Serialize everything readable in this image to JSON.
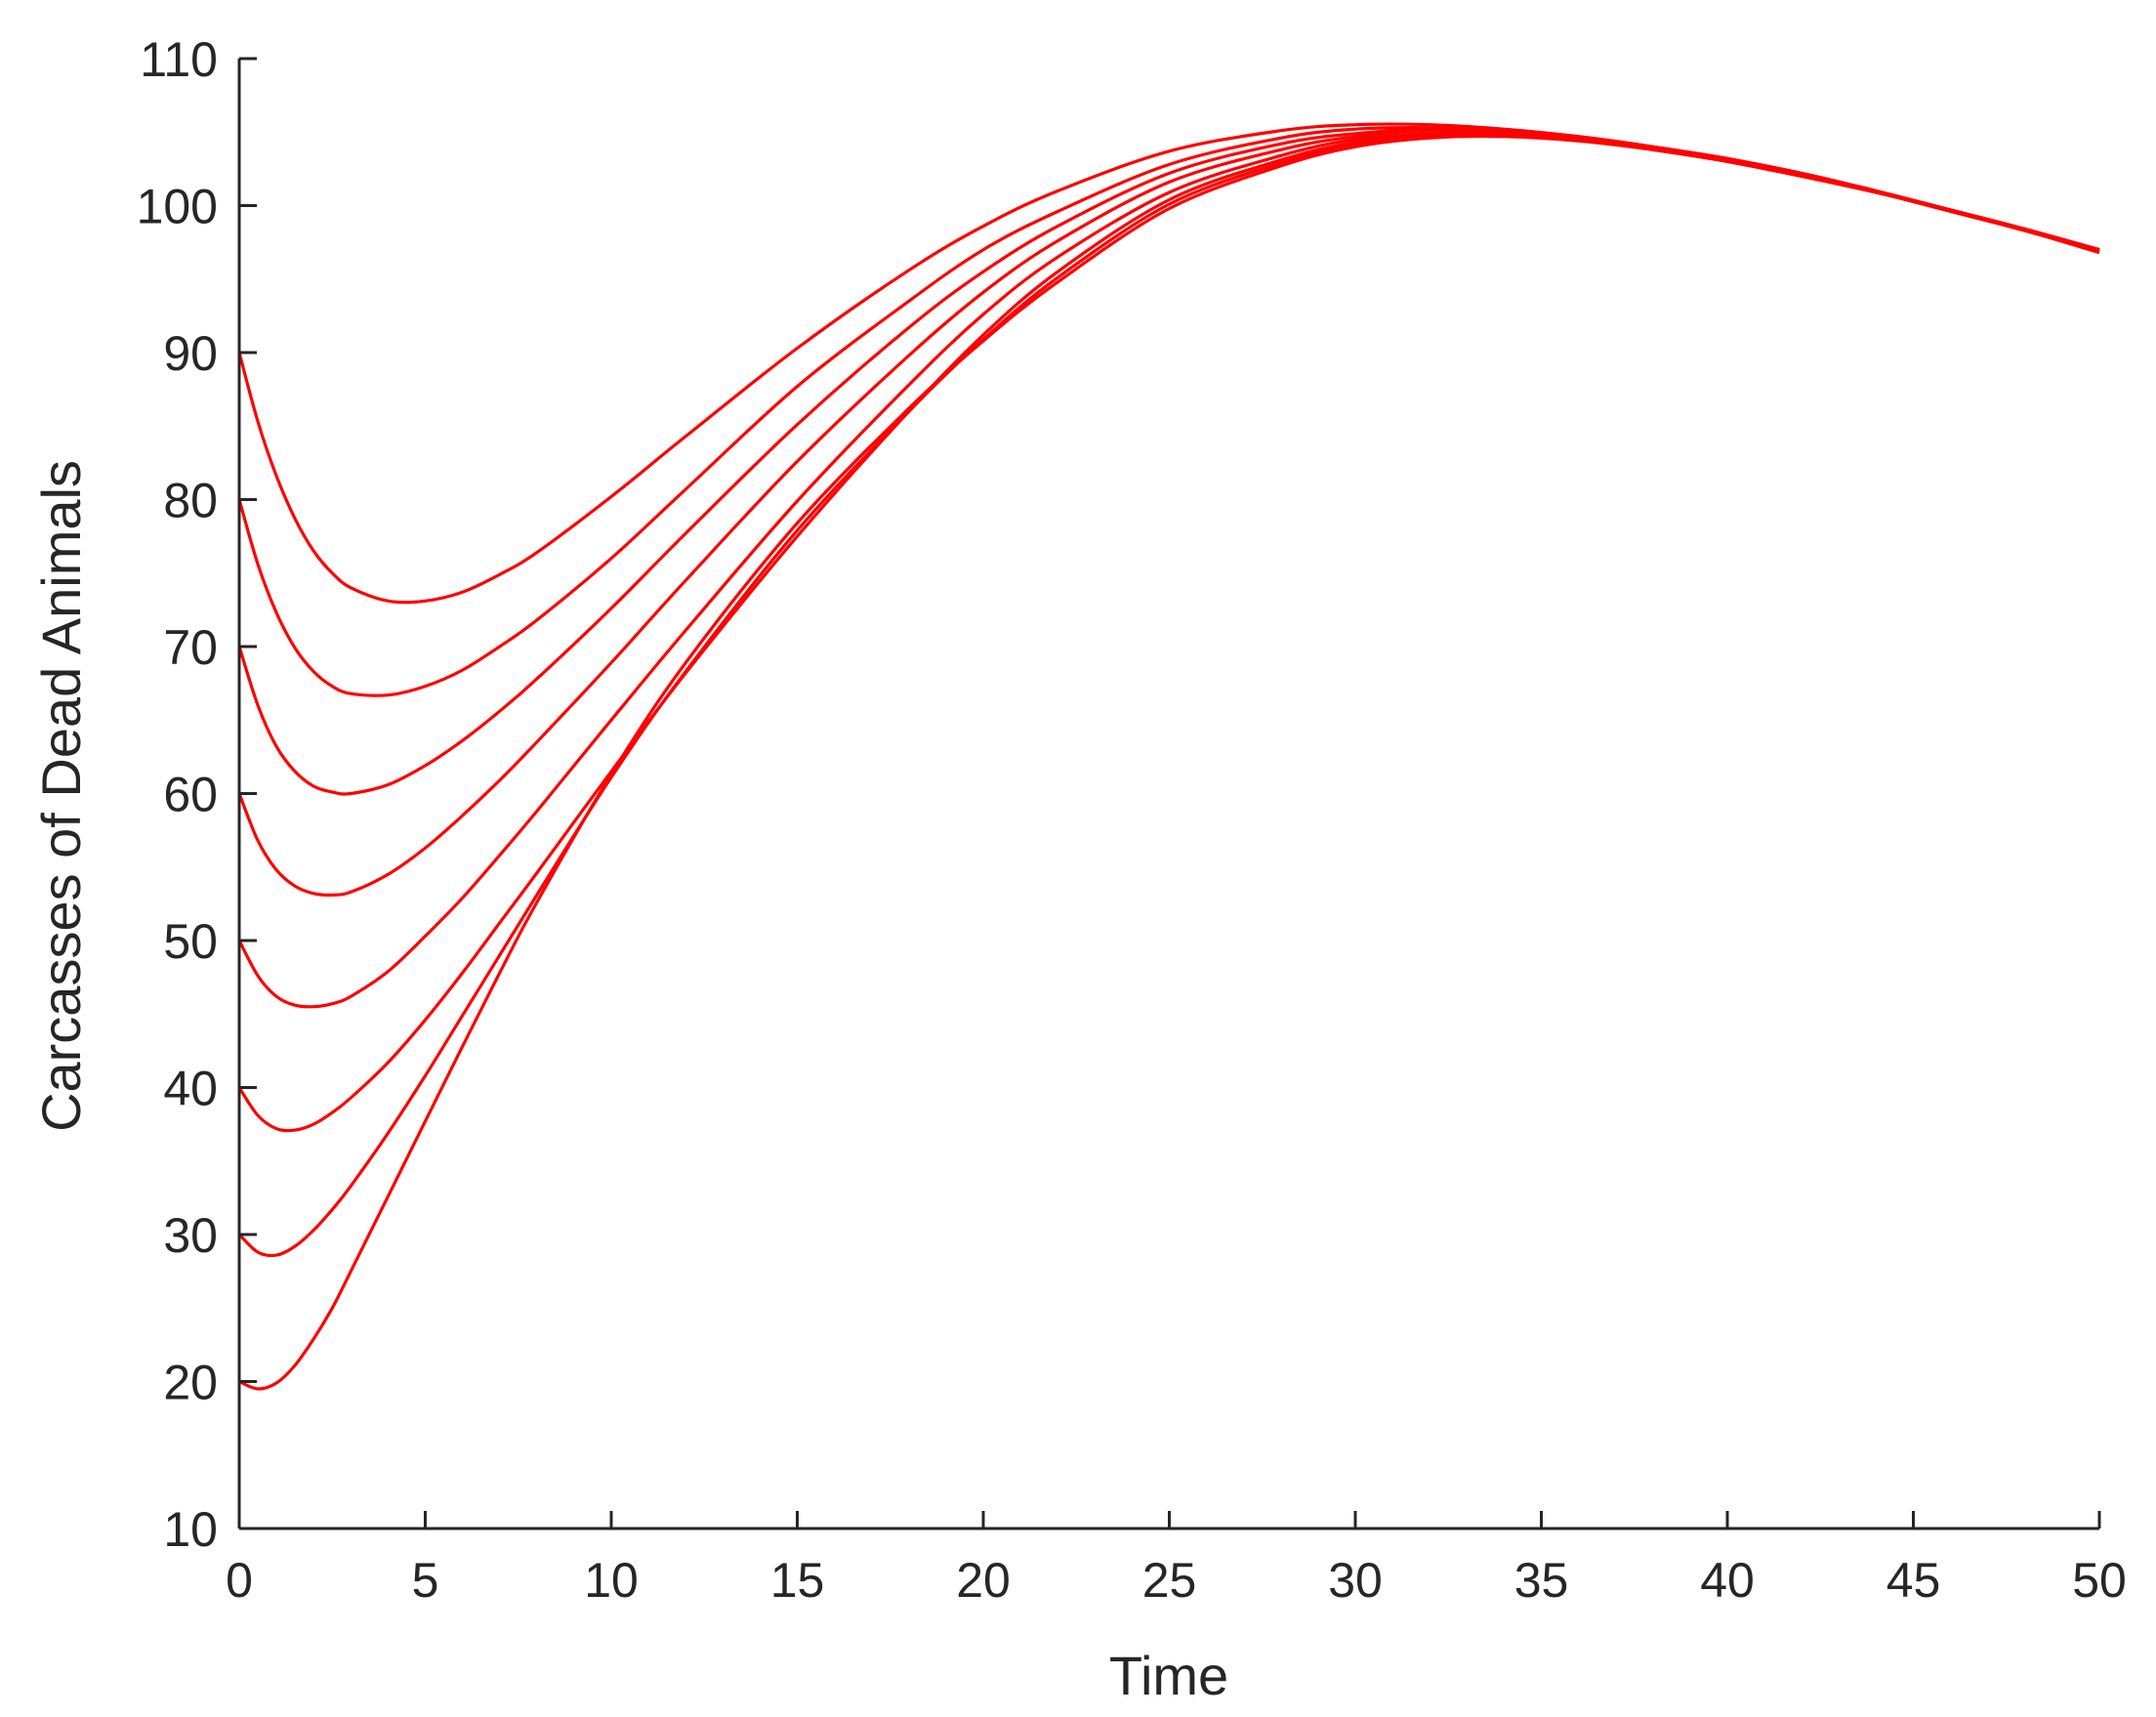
{
  "chart_data": {
    "type": "line",
    "title": "",
    "xlabel": "Time",
    "ylabel": "Carcasses of Dead Animals",
    "xlim": [
      0,
      50
    ],
    "ylim": [
      10,
      110
    ],
    "xticks": [
      "0",
      "5",
      "10",
      "15",
      "20",
      "25",
      "30",
      "35",
      "40",
      "45",
      "50"
    ],
    "yticks": [
      "10",
      "20",
      "30",
      "40",
      "50",
      "60",
      "70",
      "80",
      "90",
      "100",
      "110"
    ],
    "grid": false,
    "line_color": "#ff0000",
    "axis_color": "#262626",
    "x": [
      0,
      0.5,
      1,
      1.5,
      2,
      2.5,
      3,
      4,
      5,
      6,
      7,
      8,
      10,
      12,
      15,
      18,
      20,
      22,
      25,
      28,
      30,
      32,
      34,
      36,
      38,
      40,
      42,
      44,
      46,
      48,
      50
    ],
    "series": [
      {
        "values": [
          90,
          85.3,
          81.6,
          78.7,
          76.5,
          75.0,
          74.0,
          73.1,
          73.1,
          73.7,
          74.9,
          76.4,
          80.2,
          84.3,
          90.3,
          95.6,
          98.6,
          101.0,
          103.7,
          105.1,
          105.5,
          105.5,
          105.2,
          104.7,
          104.0,
          103.2,
          102.2,
          101.0,
          99.7,
          98.4,
          97.0
        ]
      },
      {
        "values": [
          80,
          75.6,
          72.3,
          69.9,
          68.3,
          67.3,
          66.8,
          66.7,
          67.3,
          68.4,
          70.0,
          71.8,
          76.0,
          80.7,
          87.7,
          93.5,
          97.0,
          99.6,
          102.8,
          104.6,
          105.2,
          105.3,
          105.1,
          104.7,
          104.0,
          103.2,
          102.2,
          101.0,
          99.7,
          98.4,
          97.0
        ]
      },
      {
        "values": [
          70,
          66.0,
          63.2,
          61.5,
          60.5,
          60.1,
          60.0,
          60.6,
          61.9,
          63.6,
          65.6,
          67.8,
          72.6,
          77.7,
          85.1,
          91.7,
          95.5,
          98.6,
          102.2,
          104.2,
          104.9,
          105.2,
          105.1,
          104.6,
          103.9,
          103.1,
          102.1,
          101.0,
          99.7,
          98.4,
          97.0
        ]
      },
      {
        "values": [
          60,
          56.8,
          54.8,
          53.7,
          53.2,
          53.1,
          53.3,
          54.5,
          56.3,
          58.5,
          60.9,
          63.5,
          68.9,
          74.5,
          82.6,
          89.8,
          94.1,
          97.6,
          101.6,
          103.8,
          104.7,
          105.1,
          105.0,
          104.6,
          103.9,
          103.1,
          102.1,
          100.9,
          99.7,
          98.4,
          96.9
        ]
      },
      {
        "values": [
          50,
          47.6,
          46.2,
          45.6,
          45.5,
          45.7,
          46.2,
          47.9,
          50.3,
          52.9,
          55.8,
          58.8,
          65.0,
          71.1,
          79.9,
          87.8,
          92.6,
          96.5,
          100.9,
          103.4,
          104.5,
          104.9,
          104.9,
          104.6,
          103.9,
          103.1,
          102.1,
          100.9,
          99.7,
          98.4,
          96.9
        ]
      },
      {
        "values": [
          40,
          38.1,
          37.2,
          37.1,
          37.5,
          38.3,
          39.3,
          41.7,
          44.6,
          47.8,
          51.2,
          54.6,
          61.5,
          68.2,
          77.5,
          86.0,
          91.2,
          95.5,
          100.4,
          103.1,
          104.3,
          104.8,
          104.9,
          104.5,
          103.9,
          103.0,
          102.0,
          100.9,
          99.7,
          98.3,
          96.9
        ]
      },
      {
        "values": [
          30,
          28.8,
          28.6,
          29.2,
          30.3,
          31.7,
          33.3,
          36.9,
          40.8,
          44.9,
          49.0,
          53.1,
          61.1,
          68.3,
          77.9,
          86.0,
          90.9,
          95.1,
          100.1,
          102.9,
          104.2,
          104.7,
          104.8,
          104.5,
          103.8,
          103.0,
          102.0,
          100.9,
          99.7,
          98.3,
          96.9
        ]
      },
      {
        "values": [
          20,
          19.5,
          19.9,
          21.1,
          22.9,
          25.0,
          27.5,
          32.6,
          37.7,
          42.8,
          47.8,
          52.6,
          61.3,
          68.9,
          78.4,
          86.2,
          90.8,
          94.8,
          99.8,
          102.7,
          104.0,
          104.6,
          104.7,
          104.4,
          103.8,
          103.0,
          102.0,
          100.9,
          99.6,
          98.3,
          96.8
        ]
      }
    ]
  }
}
